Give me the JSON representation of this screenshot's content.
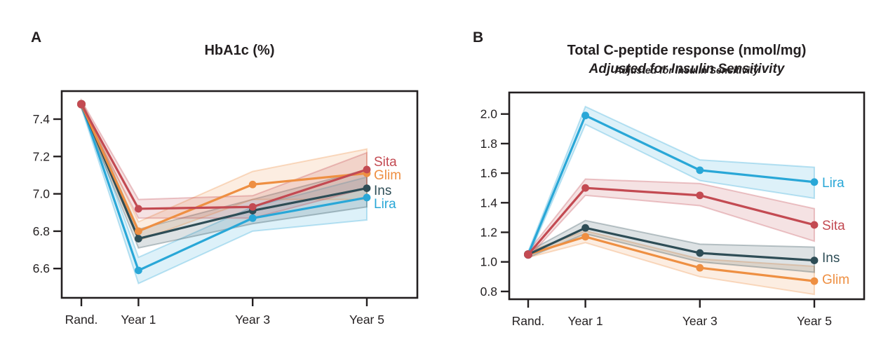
{
  "figure_title": "",
  "chart_data": [
    {
      "type": "line",
      "panel_label": "A",
      "title": "HbA1c (%)",
      "subtitle": "",
      "categories": [
        "Rand.",
        "Year 1",
        "Year 3",
        "Year 5"
      ],
      "x": [
        0,
        1,
        3,
        5
      ],
      "xlabel": "",
      "ylabel": "",
      "ylim": [
        6.45,
        7.55
      ],
      "yticks": [
        7.4,
        7.2,
        7.0,
        6.8,
        6.6
      ],
      "grid": false,
      "legend_position": "right-inline",
      "series": [
        {
          "name": "Sita",
          "color": "#c34a52",
          "values": [
            7.48,
            6.92,
            6.93,
            7.13
          ],
          "band": [
            [
              7.46,
              7.5
            ],
            [
              6.87,
              6.97
            ],
            [
              6.87,
              6.99
            ],
            [
              7.03,
              7.22
            ]
          ]
        },
        {
          "name": "Glim",
          "color": "#ee8f42",
          "values": [
            7.48,
            6.8,
            7.05,
            7.11
          ],
          "band": [
            [
              7.46,
              7.5
            ],
            [
              6.75,
              6.85
            ],
            [
              6.97,
              7.12
            ],
            [
              6.97,
              7.24
            ]
          ]
        },
        {
          "name": "Ins",
          "color": "#2e4d56",
          "values": [
            7.48,
            6.76,
            6.91,
            7.03
          ],
          "band": [
            [
              7.46,
              7.5
            ],
            [
              6.71,
              6.81
            ],
            [
              6.84,
              6.97
            ],
            [
              6.93,
              7.13
            ]
          ]
        },
        {
          "name": "Lira",
          "color": "#29a7d7",
          "values": [
            7.48,
            6.59,
            6.87,
            6.98
          ],
          "band": [
            [
              7.46,
              7.5
            ],
            [
              6.52,
              6.66
            ],
            [
              6.8,
              6.93
            ],
            [
              6.86,
              7.09
            ]
          ]
        }
      ]
    },
    {
      "type": "line",
      "panel_label": "B",
      "title": "Total C-peptide response (nmol/mg)",
      "subtitle": "Adjusted for Insulin Sensitivity",
      "categories": [
        "Rand.",
        "Year 1",
        "Year 3",
        "Year 5"
      ],
      "x": [
        0,
        1,
        3,
        5
      ],
      "xlabel": "",
      "ylabel": "",
      "ylim": [
        0.75,
        2.14
      ],
      "yticks": [
        2.0,
        1.8,
        1.6,
        1.4,
        1.2,
        1.0,
        0.8
      ],
      "grid": false,
      "legend_position": "right-inline",
      "series": [
        {
          "name": "Lira",
          "color": "#29a7d7",
          "values": [
            1.05,
            1.99,
            1.62,
            1.54
          ],
          "band": [
            [
              1.03,
              1.07
            ],
            [
              1.93,
              2.05
            ],
            [
              1.55,
              1.69
            ],
            [
              1.43,
              1.64
            ]
          ]
        },
        {
          "name": "Sita",
          "color": "#c34a52",
          "values": [
            1.05,
            1.5,
            1.45,
            1.25
          ],
          "band": [
            [
              1.03,
              1.07
            ],
            [
              1.45,
              1.56
            ],
            [
              1.38,
              1.53
            ],
            [
              1.14,
              1.36
            ]
          ]
        },
        {
          "name": "Ins",
          "color": "#2e4d56",
          "values": [
            1.05,
            1.23,
            1.06,
            1.01
          ],
          "band": [
            [
              1.03,
              1.07
            ],
            [
              1.19,
              1.28
            ],
            [
              1.0,
              1.12
            ],
            [
              0.93,
              1.1
            ]
          ]
        },
        {
          "name": "Glim",
          "color": "#ee8f42",
          "values": [
            1.05,
            1.17,
            0.96,
            0.87
          ],
          "band": [
            [
              1.03,
              1.07
            ],
            [
              1.13,
              1.21
            ],
            [
              0.9,
              1.02
            ],
            [
              0.78,
              0.97
            ]
          ]
        }
      ]
    }
  ],
  "colors": {
    "axis": "#231f20",
    "background": "#ffffff",
    "sita": "#c34a52",
    "glim": "#ee8f42",
    "ins": "#2e4d56",
    "lira": "#29a7d7"
  }
}
